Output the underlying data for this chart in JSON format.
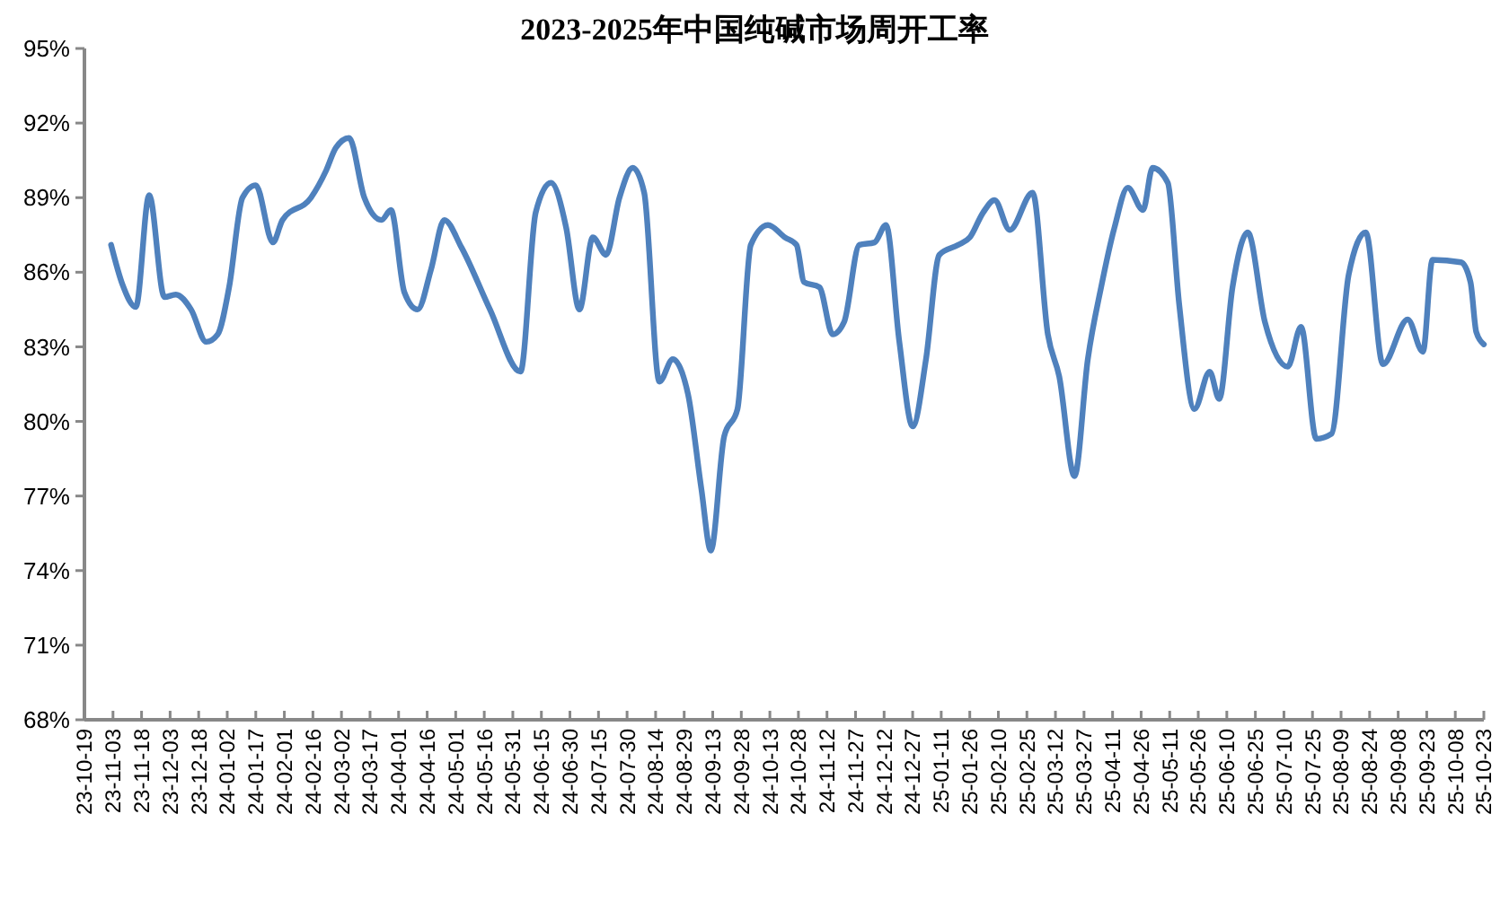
{
  "chart_data": {
    "type": "line",
    "title": "2023-2025年中国纯碱市场周开工率",
    "ylim": [
      68,
      95
    ],
    "yticks": [
      {
        "value": 68,
        "label": "68%"
      },
      {
        "value": 71,
        "label": "71%"
      },
      {
        "value": 74,
        "label": "74%"
      },
      {
        "value": 77,
        "label": "77%"
      },
      {
        "value": 80,
        "label": "80%"
      },
      {
        "value": 83,
        "label": "83%"
      },
      {
        "value": 86,
        "label": "86%"
      },
      {
        "value": 89,
        "label": "89%"
      },
      {
        "value": 92,
        "label": "92%"
      },
      {
        "value": 95,
        "label": "95%"
      }
    ],
    "xlim": [
      "2023-10-19",
      "2025-10-23"
    ],
    "xticks": [
      {
        "value": "2023-10-19",
        "label": "23-10-19"
      },
      {
        "value": "2023-11-03",
        "label": "23-11-03"
      },
      {
        "value": "2023-11-18",
        "label": "23-11-18"
      },
      {
        "value": "2023-12-03",
        "label": "23-12-03"
      },
      {
        "value": "2023-12-18",
        "label": "23-12-18"
      },
      {
        "value": "2024-01-02",
        "label": "24-01-02"
      },
      {
        "value": "2024-01-17",
        "label": "24-01-17"
      },
      {
        "value": "2024-02-01",
        "label": "24-02-01"
      },
      {
        "value": "2024-02-16",
        "label": "24-02-16"
      },
      {
        "value": "2024-03-02",
        "label": "24-03-02"
      },
      {
        "value": "2024-03-17",
        "label": "24-03-17"
      },
      {
        "value": "2024-04-01",
        "label": "24-04-01"
      },
      {
        "value": "2024-04-16",
        "label": "24-04-16"
      },
      {
        "value": "2024-05-01",
        "label": "24-05-01"
      },
      {
        "value": "2024-05-16",
        "label": "24-05-16"
      },
      {
        "value": "2024-05-31",
        "label": "24-05-31"
      },
      {
        "value": "2024-06-15",
        "label": "24-06-15"
      },
      {
        "value": "2024-06-30",
        "label": "24-06-30"
      },
      {
        "value": "2024-07-15",
        "label": "24-07-15"
      },
      {
        "value": "2024-07-30",
        "label": "24-07-30"
      },
      {
        "value": "2024-08-14",
        "label": "24-08-14"
      },
      {
        "value": "2024-08-29",
        "label": "24-08-29"
      },
      {
        "value": "2024-09-13",
        "label": "24-09-13"
      },
      {
        "value": "2024-09-28",
        "label": "24-09-28"
      },
      {
        "value": "2024-10-13",
        "label": "24-10-13"
      },
      {
        "value": "2024-10-28",
        "label": "24-10-28"
      },
      {
        "value": "2024-11-12",
        "label": "24-11-12"
      },
      {
        "value": "2024-11-27",
        "label": "24-11-27"
      },
      {
        "value": "2024-12-12",
        "label": "24-12-12"
      },
      {
        "value": "2024-12-27",
        "label": "24-12-27"
      },
      {
        "value": "2025-01-11",
        "label": "25-01-11"
      },
      {
        "value": "2025-01-26",
        "label": "25-01-26"
      },
      {
        "value": "2025-02-10",
        "label": "25-02-10"
      },
      {
        "value": "2025-02-25",
        "label": "25-02-25"
      },
      {
        "value": "2025-03-12",
        "label": "25-03-12"
      },
      {
        "value": "2025-03-27",
        "label": "25-03-27"
      },
      {
        "value": "2025-04-11",
        "label": "25-04-11"
      },
      {
        "value": "2025-04-26",
        "label": "25-04-26"
      },
      {
        "value": "2025-05-11",
        "label": "25-05-11"
      },
      {
        "value": "2025-05-26",
        "label": "25-05-26"
      },
      {
        "value": "2025-06-10",
        "label": "25-06-10"
      },
      {
        "value": "2025-06-25",
        "label": "25-06-25"
      },
      {
        "value": "2025-07-10",
        "label": "25-07-10"
      },
      {
        "value": "2025-07-25",
        "label": "25-07-25"
      },
      {
        "value": "2025-08-09",
        "label": "25-08-09"
      },
      {
        "value": "2025-08-24",
        "label": "25-08-24"
      },
      {
        "value": "2025-09-08",
        "label": "25-09-08"
      },
      {
        "value": "2025-09-23",
        "label": "25-09-23"
      },
      {
        "value": "2025-10-08",
        "label": "25-10-08"
      },
      {
        "value": "2025-10-23",
        "label": "25-10-23"
      }
    ],
    "x": [
      "2023-11-02",
      "2023-11-08",
      "2023-11-15",
      "2023-11-22",
      "2023-11-30",
      "2023-12-06",
      "2023-12-14",
      "2023-12-22",
      "2023-12-28",
      "2024-01-03",
      "2024-01-10",
      "2024-01-17",
      "2024-01-26",
      "2024-01-31",
      "2024-02-15",
      "2024-02-23",
      "2024-02-28",
      "2024-03-06",
      "2024-03-14",
      "2024-03-23",
      "2024-03-28",
      "2024-04-04",
      "2024-04-11",
      "2024-04-18",
      "2024-04-25",
      "2024-05-04",
      "2024-05-19",
      "2024-06-04",
      "2024-06-12",
      "2024-06-20",
      "2024-06-28",
      "2024-07-05",
      "2024-07-12",
      "2024-07-19",
      "2024-07-26",
      "2024-08-02",
      "2024-08-08",
      "2024-08-16",
      "2024-08-23",
      "2024-08-31",
      "2024-09-07",
      "2024-09-12",
      "2024-09-19",
      "2024-09-26",
      "2024-10-03",
      "2024-10-12",
      "2024-10-21",
      "2024-10-27",
      "2024-10-31",
      "2024-11-08",
      "2024-11-15",
      "2024-11-21",
      "2024-11-29",
      "2024-12-07",
      "2024-12-13",
      "2024-12-20",
      "2024-12-27",
      "2025-01-03",
      "2025-01-10",
      "2025-01-20",
      "2025-01-26",
      "2025-02-02",
      "2025-02-08",
      "2025-02-16",
      "2025-02-28",
      "2025-03-08",
      "2025-03-14",
      "2025-03-22",
      "2025-03-29",
      "2025-04-05",
      "2025-04-12",
      "2025-04-19",
      "2025-04-27",
      "2025-05-02",
      "2025-05-10",
      "2025-05-16",
      "2025-05-24",
      "2025-06-01",
      "2025-06-06",
      "2025-06-13",
      "2025-06-21",
      "2025-06-30",
      "2025-07-12",
      "2025-07-19",
      "2025-07-27",
      "2025-08-04",
      "2025-08-13",
      "2025-08-22",
      "2025-08-31",
      "2025-09-13",
      "2025-09-21",
      "2025-09-26",
      "2025-10-11",
      "2025-10-16",
      "2025-10-19",
      "2025-10-23"
    ],
    "series": [
      {
        "color": "#4f81bd",
        "values": [
          87.1,
          85.5,
          84.6,
          89.1,
          85.0,
          85.1,
          84.5,
          83.2,
          83.5,
          85.4,
          89.0,
          89.5,
          87.2,
          88.1,
          89.0,
          90.1,
          91.0,
          91.4,
          89.0,
          88.1,
          88.5,
          85.2,
          84.5,
          86.1,
          88.1,
          87.0,
          84.5,
          82.0,
          88.4,
          89.6,
          87.8,
          84.5,
          87.4,
          86.7,
          89.0,
          90.2,
          89.2,
          81.6,
          82.5,
          81.1,
          77.3,
          74.8,
          79.4,
          80.5,
          87.1,
          87.9,
          87.4,
          87.1,
          85.6,
          85.4,
          83.5,
          84.0,
          87.1,
          87.2,
          87.9,
          83.2,
          79.8,
          82.5,
          86.7,
          87.1,
          87.4,
          88.4,
          88.9,
          87.7,
          89.2,
          83.5,
          81.8,
          77.8,
          82.5,
          85.4,
          87.8,
          89.4,
          88.5,
          90.2,
          89.6,
          84.7,
          80.5,
          82.0,
          80.9,
          85.4,
          87.6,
          84.0,
          82.2,
          83.8,
          79.3,
          79.5,
          85.9,
          87.6,
          82.3,
          84.1,
          82.8,
          86.5,
          86.4,
          85.6,
          83.6,
          83.1
        ]
      }
    ]
  }
}
